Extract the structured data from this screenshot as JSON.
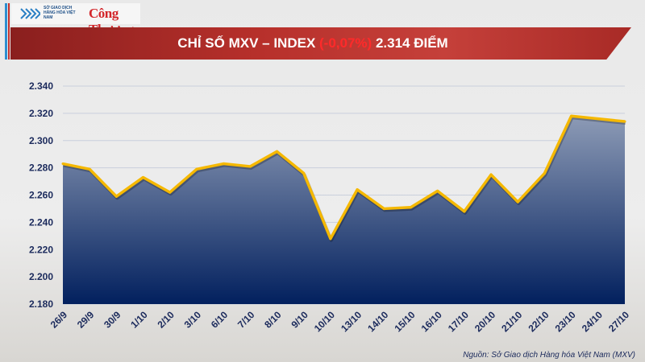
{
  "header": {
    "logo_exchange_text": "SỞ GIAO DỊCH HÀNG HÓA VIỆT NAM",
    "logo_newspaper_text": "Công Thương",
    "title_prefix": "CHỈ SỐ MXV – INDEX",
    "title_change": "(-0,07%)",
    "title_value": "2.314 ĐIỂM"
  },
  "colors": {
    "line": "#f5b800",
    "area_top": "#8d9bb6",
    "area_bottom": "#02205e",
    "change_negative": "#ff2a2a",
    "axis_text": "#1b2a5c"
  },
  "chart_data": {
    "type": "area",
    "title": "CHỈ SỐ MXV – INDEX (-0,07%) 2.314 ĐIỂM",
    "categories": [
      "26/9",
      "29/9",
      "30/9",
      "1/10",
      "2/10",
      "3/10",
      "6/10",
      "7/10",
      "8/10",
      "9/10",
      "10/10",
      "13/10",
      "14/10",
      "15/10",
      "16/10",
      "17/10",
      "20/10",
      "21/10",
      "22/10",
      "23/10",
      "24/10",
      "27/10"
    ],
    "values": [
      2283,
      2279,
      2259,
      2273,
      2262,
      2279,
      2283,
      2281,
      2292,
      2276,
      2228,
      2264,
      2250,
      2251,
      2263,
      2248,
      2275,
      2255,
      2276,
      2318,
      2316,
      2314
    ],
    "yticks": [
      "2.180",
      "2.200",
      "2.220",
      "2.240",
      "2.260",
      "2.280",
      "2.300",
      "2.320",
      "2.340"
    ],
    "ylim": [
      2180,
      2340
    ],
    "grid": true,
    "legend": "none"
  },
  "footer": {
    "source": "Nguồn: Sở Giao dịch Hàng hóa Việt Nam (MXV)"
  }
}
